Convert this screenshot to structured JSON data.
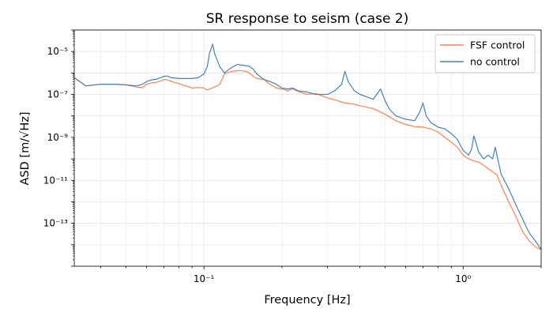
{
  "chart_data": {
    "type": "line",
    "title": "SR response to seism (case 2)",
    "xlabel": "Frequency [Hz]",
    "ylabel": "ASD [m/√Hz]",
    "x_scale": "log",
    "y_scale": "log",
    "xlim": [
      0.0316,
      2.0
    ],
    "ylim": [
      1e-15,
      0.0001
    ],
    "grid": true,
    "legend_position": "top-right",
    "x_tick_labels": [
      {
        "value": 0.1,
        "label": "10⁻¹"
      },
      {
        "value": 1.0,
        "label": "10⁰"
      }
    ],
    "y_tick_labels": [
      {
        "value": 1e-13,
        "label": "10⁻¹³"
      },
      {
        "value": 1e-11,
        "label": "10⁻¹¹"
      },
      {
        "value": 1e-09,
        "label": "10⁻⁹"
      },
      {
        "value": 1e-07,
        "label": "10⁻⁷"
      },
      {
        "value": 1e-05,
        "label": "10⁻⁵"
      }
    ],
    "series": [
      {
        "name": "FSF control",
        "color": "#ff7f50",
        "x": [
          0.0316,
          0.035,
          0.04,
          0.045,
          0.05,
          0.055,
          0.058,
          0.06,
          0.063,
          0.065,
          0.068,
          0.07,
          0.072,
          0.075,
          0.08,
          0.085,
          0.09,
          0.095,
          0.1,
          0.103,
          0.105,
          0.11,
          0.115,
          0.12,
          0.125,
          0.13,
          0.135,
          0.14,
          0.145,
          0.15,
          0.155,
          0.16,
          0.17,
          0.18,
          0.19,
          0.2,
          0.21,
          0.22,
          0.23,
          0.25,
          0.27,
          0.3,
          0.33,
          0.35,
          0.38,
          0.4,
          0.45,
          0.5,
          0.55,
          0.6,
          0.65,
          0.7,
          0.75,
          0.8,
          0.85,
          0.9,
          0.95,
          1.0,
          1.05,
          1.1,
          1.15,
          1.2,
          1.25,
          1.3,
          1.35,
          1.4,
          1.5,
          1.6,
          1.7,
          1.8,
          1.9,
          2.0
        ],
        "y": [
          6e-07,
          2.5e-07,
          3e-07,
          3e-07,
          2.8e-07,
          2.2e-07,
          2.1e-07,
          3e-07,
          3.5e-07,
          3.6e-07,
          4.2e-07,
          5e-07,
          4.8e-07,
          4e-07,
          3.2e-07,
          2.5e-07,
          2e-07,
          2.1e-07,
          2e-07,
          1.6e-07,
          1.8e-07,
          2.2e-07,
          3e-07,
          9e-07,
          1.1e-06,
          1.2e-06,
          1.3e-06,
          1.25e-06,
          1.2e-06,
          1e-06,
          7e-07,
          5.5e-07,
          5e-07,
          3e-07,
          2e-07,
          1.8e-07,
          1.5e-07,
          1.8e-07,
          1.4e-07,
          1e-07,
          1.1e-07,
          7e-08,
          5e-08,
          4e-08,
          3.5e-08,
          3e-08,
          2.2e-08,
          1.2e-08,
          6e-09,
          4e-09,
          3.2e-09,
          3e-09,
          2.5e-09,
          1.8e-09,
          1e-09,
          6e-10,
          3.5e-10,
          1.5e-10,
          1e-10,
          8e-11,
          7e-11,
          5e-11,
          3.5e-11,
          2.5e-11,
          1.8e-11,
          6e-12,
          1e-12,
          2e-13,
          4e-14,
          1.5e-14,
          8e-15,
          6e-15
        ]
      },
      {
        "name": "no control",
        "color": "#4682b4",
        "x": [
          0.0316,
          0.035,
          0.04,
          0.045,
          0.05,
          0.055,
          0.058,
          0.06,
          0.063,
          0.065,
          0.068,
          0.07,
          0.072,
          0.075,
          0.08,
          0.085,
          0.09,
          0.095,
          0.1,
          0.103,
          0.105,
          0.108,
          0.11,
          0.115,
          0.12,
          0.125,
          0.13,
          0.135,
          0.14,
          0.145,
          0.15,
          0.155,
          0.16,
          0.17,
          0.18,
          0.19,
          0.2,
          0.21,
          0.22,
          0.23,
          0.25,
          0.27,
          0.3,
          0.32,
          0.34,
          0.35,
          0.36,
          0.38,
          0.4,
          0.45,
          0.48,
          0.5,
          0.52,
          0.55,
          0.6,
          0.65,
          0.68,
          0.7,
          0.72,
          0.75,
          0.8,
          0.85,
          0.9,
          0.95,
          1.0,
          1.05,
          1.08,
          1.1,
          1.15,
          1.2,
          1.25,
          1.3,
          1.33,
          1.35,
          1.4,
          1.5,
          1.6,
          1.7,
          1.8,
          1.9,
          2.0
        ],
        "y": [
          6e-07,
          2.5e-07,
          3e-07,
          3e-07,
          2.8e-07,
          2.5e-07,
          3e-07,
          4e-07,
          4.8e-07,
          5e-07,
          6e-07,
          7e-07,
          7.2e-07,
          6e-07,
          5.5e-07,
          5.5e-07,
          5.5e-07,
          6e-07,
          9e-07,
          2e-06,
          8e-06,
          2.2e-05,
          8e-06,
          2e-06,
          1e-06,
          1.5e-06,
          2e-06,
          2.5e-06,
          2.3e-06,
          2.2e-06,
          2e-06,
          1.5e-06,
          9e-07,
          5e-07,
          4e-07,
          3e-07,
          2e-07,
          1.8e-07,
          2e-07,
          1.5e-07,
          1.3e-07,
          1e-07,
          1e-07,
          1.5e-07,
          3e-07,
          1.2e-06,
          4e-07,
          1.5e-07,
          1e-07,
          6e-08,
          1.8e-07,
          5e-08,
          2e-08,
          1e-08,
          7e-09,
          6e-09,
          1.5e-08,
          4e-08,
          1e-08,
          5e-09,
          3e-09,
          2.5e-09,
          1.5e-09,
          8e-10,
          2.5e-10,
          1.5e-10,
          3e-10,
          1.2e-09,
          2e-10,
          1e-10,
          1.5e-10,
          1e-10,
          3.5e-10,
          1.5e-10,
          2e-11,
          4e-12,
          7e-13,
          1.5e-13,
          3.5e-14,
          1.5e-14,
          6e-15
        ]
      }
    ]
  }
}
